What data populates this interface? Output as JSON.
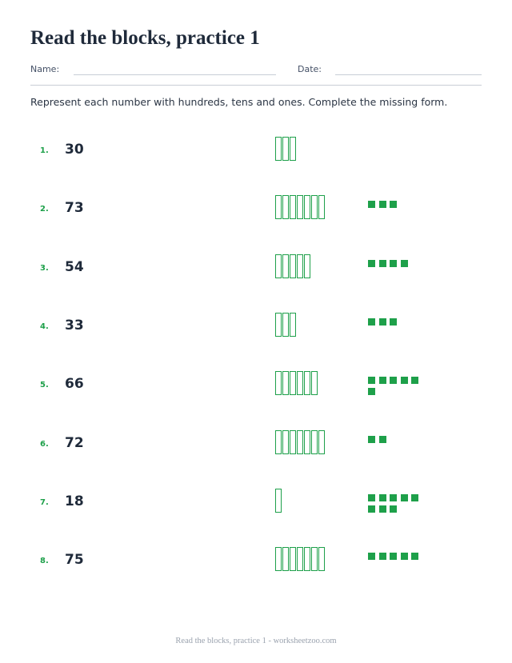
{
  "title": "Read the blocks, practice 1",
  "meta": {
    "name_label": "Name:",
    "date_label": "Date:"
  },
  "instructions": "Represent each number with hundreds, tens and ones. Complete the missing form.",
  "problems": [
    {
      "label": "1.",
      "value": "30",
      "tens": 3,
      "ones": 0
    },
    {
      "label": "2.",
      "value": "73",
      "tens": 7,
      "ones": 3
    },
    {
      "label": "3.",
      "value": "54",
      "tens": 5,
      "ones": 4
    },
    {
      "label": "4.",
      "value": "33",
      "tens": 3,
      "ones": 3
    },
    {
      "label": "5.",
      "value": "66",
      "tens": 6,
      "ones": 6
    },
    {
      "label": "6.",
      "value": "72",
      "tens": 7,
      "ones": 2
    },
    {
      "label": "7.",
      "value": "18",
      "tens": 1,
      "ones": 8
    },
    {
      "label": "8.",
      "value": "75",
      "tens": 7,
      "ones": 5
    }
  ],
  "footer": "Read the blocks, practice 1 - worksheetzoo.com",
  "colors": {
    "accent": "#1ea04a",
    "text": "#1f2a3a",
    "muted": "#9aa2ae"
  }
}
